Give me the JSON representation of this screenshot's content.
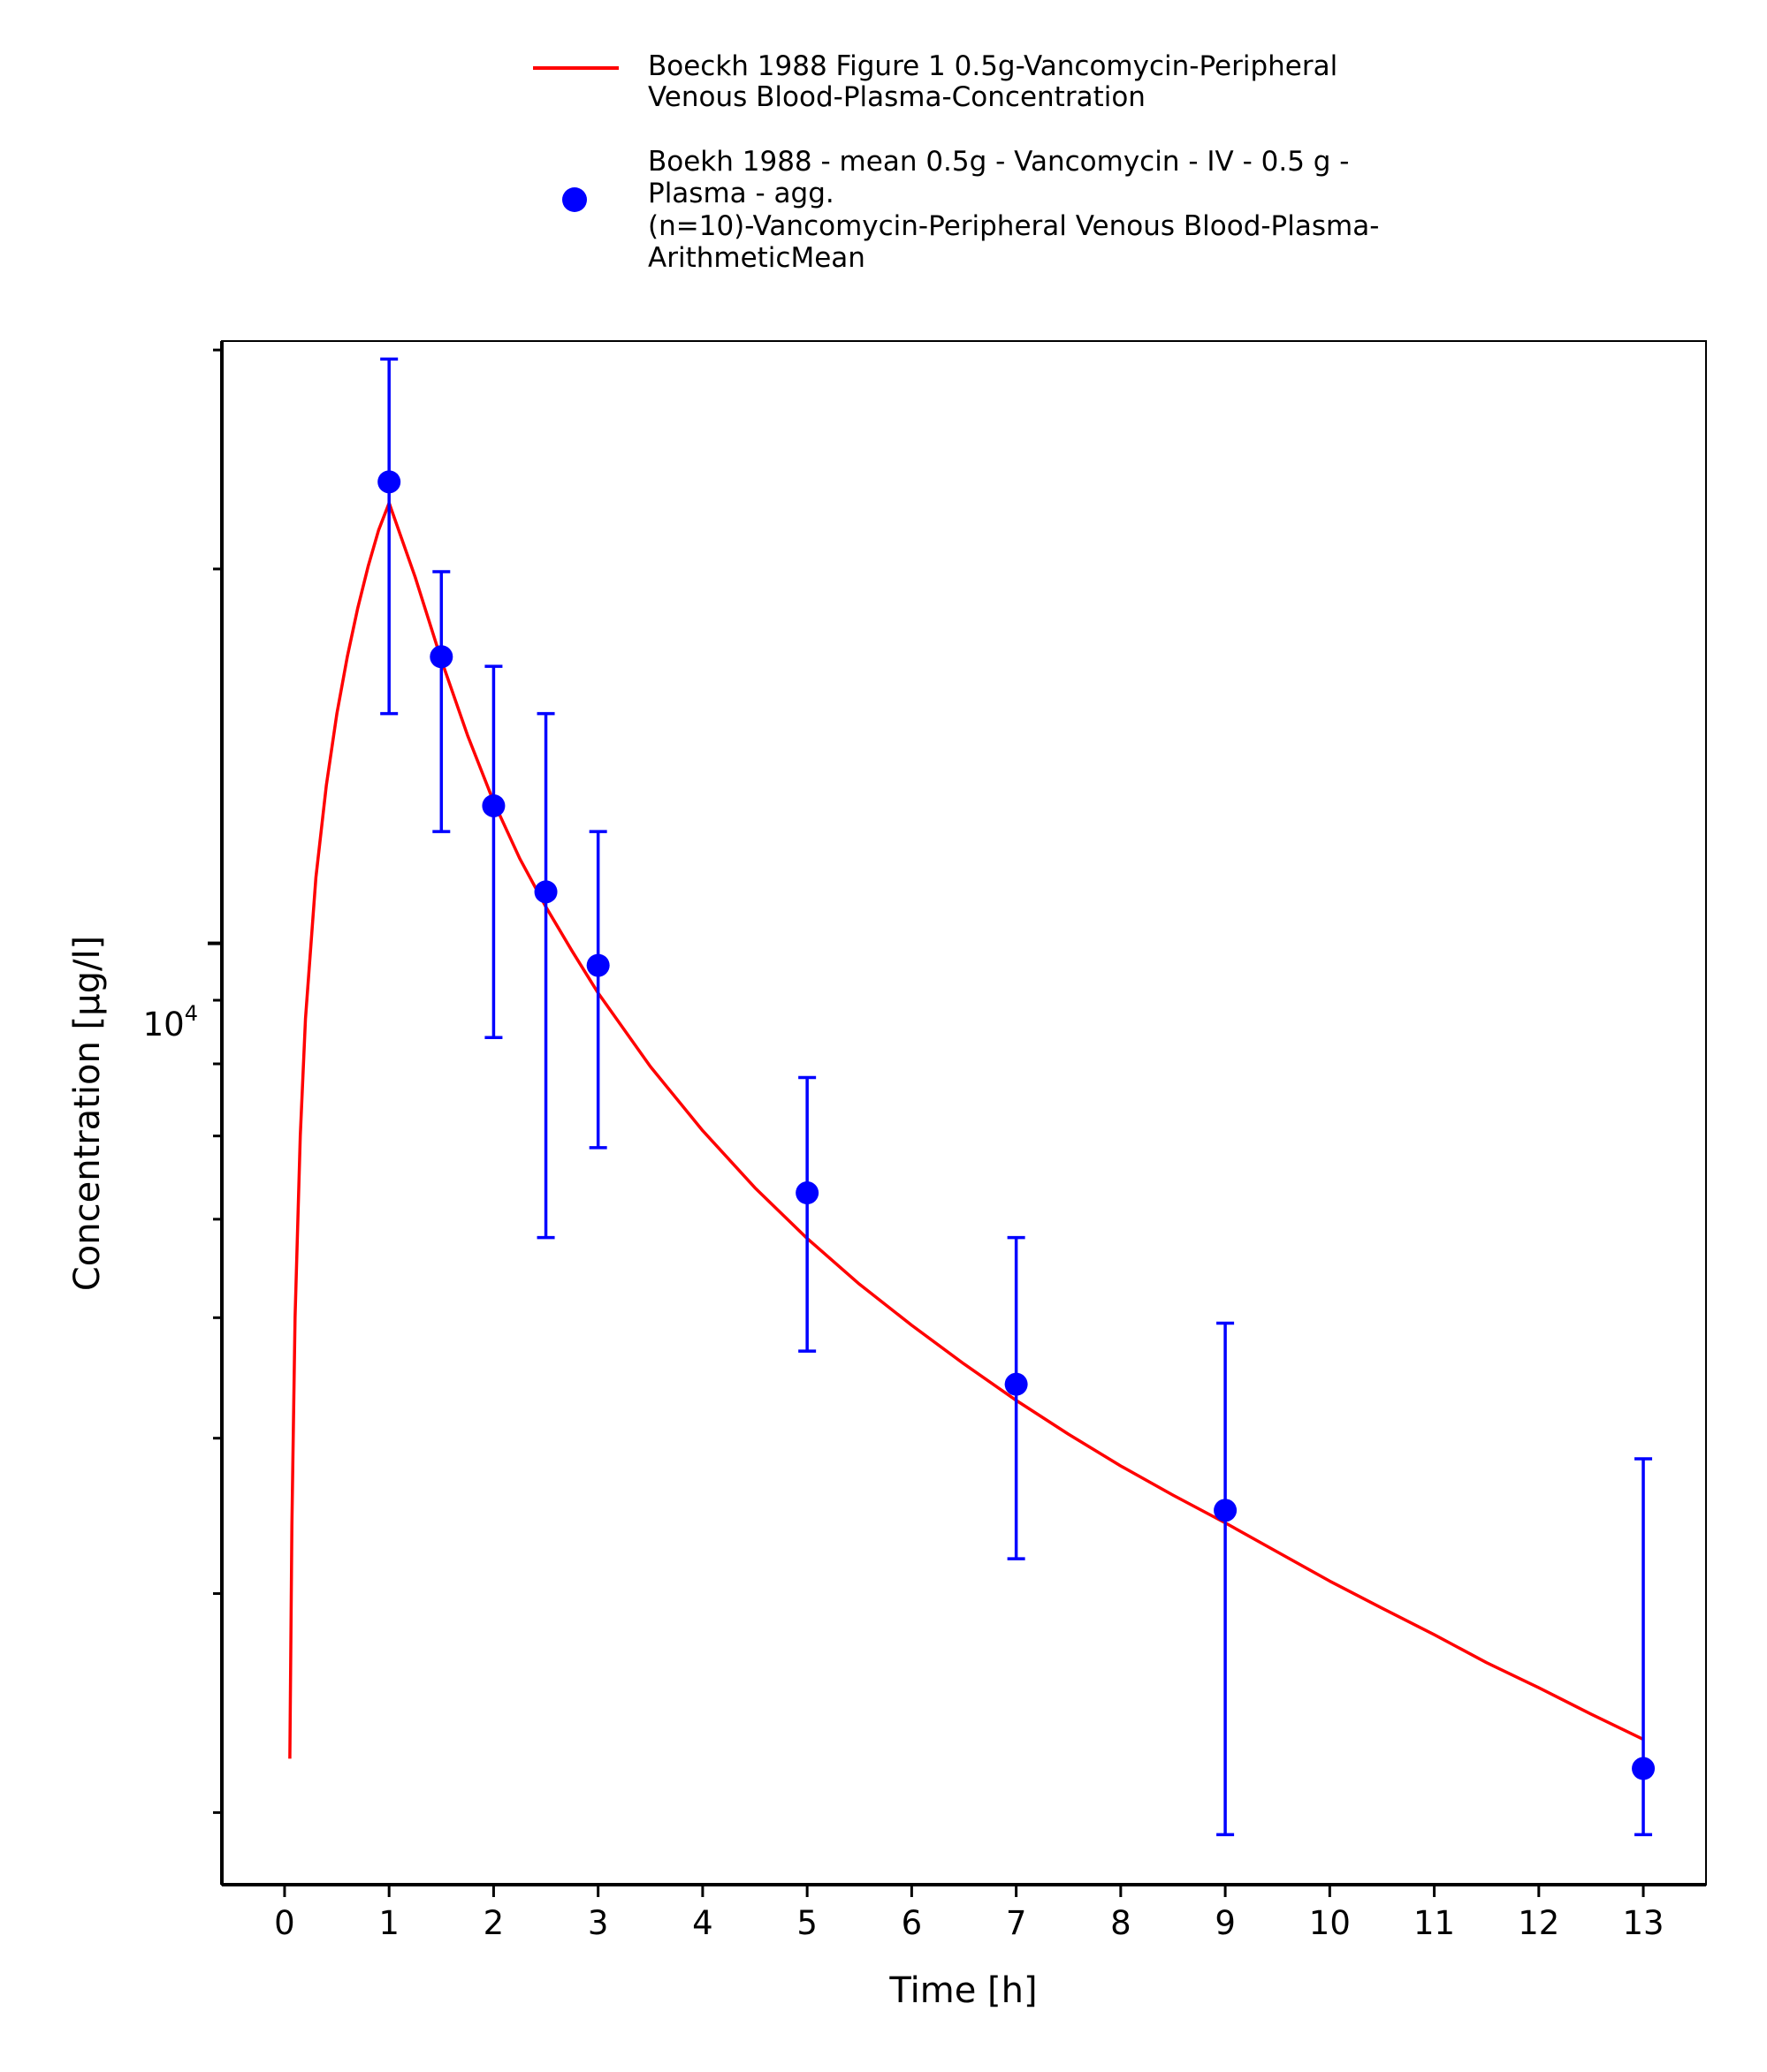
{
  "chart_data": {
    "type": "scatter",
    "title": "",
    "xlabel": "Time [h]",
    "ylabel": "Concentration [µg/l]",
    "x_scale": "linear",
    "y_scale": "log",
    "xlim": [
      -0.6,
      13.6
    ],
    "ylim": [
      1750,
      30500
    ],
    "x_ticks": [
      "0",
      "1",
      "2",
      "3",
      "4",
      "5",
      "6",
      "7",
      "8",
      "9",
      "10",
      "11",
      "12",
      "13"
    ],
    "y_tick_labels": [
      {
        "base": "10",
        "exp": "4"
      }
    ],
    "grid": false,
    "legend_position": "top",
    "series": [
      {
        "name": "Boeckh 1988 Figure 1 0.5g-Vancomycin-Peripheral Venous Blood-Plasma-Concentration",
        "legend_lines": [
          "Boeckh 1988 Figure 1 0.5g-Vancomycin-Peripheral",
          "Venous Blood-Plasma-Concentration"
        ],
        "kind": "line",
        "color": "#ff0000",
        "x": [
          0.05,
          0.07,
          0.1,
          0.15,
          0.2,
          0.3,
          0.4,
          0.5,
          0.6,
          0.7,
          0.8,
          0.9,
          1.0,
          1.25,
          1.5,
          1.75,
          2.0,
          2.25,
          2.5,
          2.75,
          3.0,
          3.5,
          4.0,
          4.5,
          5.0,
          5.5,
          6.0,
          6.5,
          7.0,
          7.5,
          8.0,
          8.5,
          9.0,
          9.5,
          10.0,
          10.5,
          11.0,
          11.5,
          12.0,
          12.5,
          13.0
        ],
        "y": [
          2210,
          3400,
          5000,
          7000,
          8700,
          11300,
          13400,
          15300,
          17000,
          18600,
          20100,
          21500,
          22600,
          19700,
          16900,
          14700,
          13000,
          11700,
          10700,
          9860,
          9120,
          7960,
          7070,
          6360,
          5790,
          5320,
          4930,
          4590,
          4290,
          4030,
          3800,
          3600,
          3420,
          3240,
          3070,
          2920,
          2780,
          2640,
          2520,
          2400,
          2290
        ]
      },
      {
        "name": "Boekh 1988 - mean 0.5g - Vancomycin - IV - 0.5 g - Plasma - agg. (n=10)-Vancomycin-Peripheral Venous Blood-Plasma-ArithmeticMean",
        "legend_lines": [
          "Boekh 1988 - mean 0.5g - Vancomycin - IV - 0.5 g -",
          "Plasma - agg.",
          "(n=10)-Vancomycin-Peripheral Venous Blood-Plasma-",
          "ArithmeticMean"
        ],
        "kind": "scatter_with_error_bars",
        "color": "#0000ff",
        "x": [
          1,
          1.5,
          2,
          2.5,
          3,
          5,
          7,
          9,
          13
        ],
        "y": [
          23500,
          17000,
          12900,
          11000,
          9600,
          6300,
          4420,
          3500,
          2170
        ],
        "error_low": [
          15300,
          12300,
          8400,
          5800,
          6850,
          4700,
          3200,
          1920,
          1920
        ],
        "error_high": [
          29500,
          19900,
          16700,
          15300,
          12300,
          7800,
          5800,
          4950,
          3850
        ]
      }
    ]
  }
}
